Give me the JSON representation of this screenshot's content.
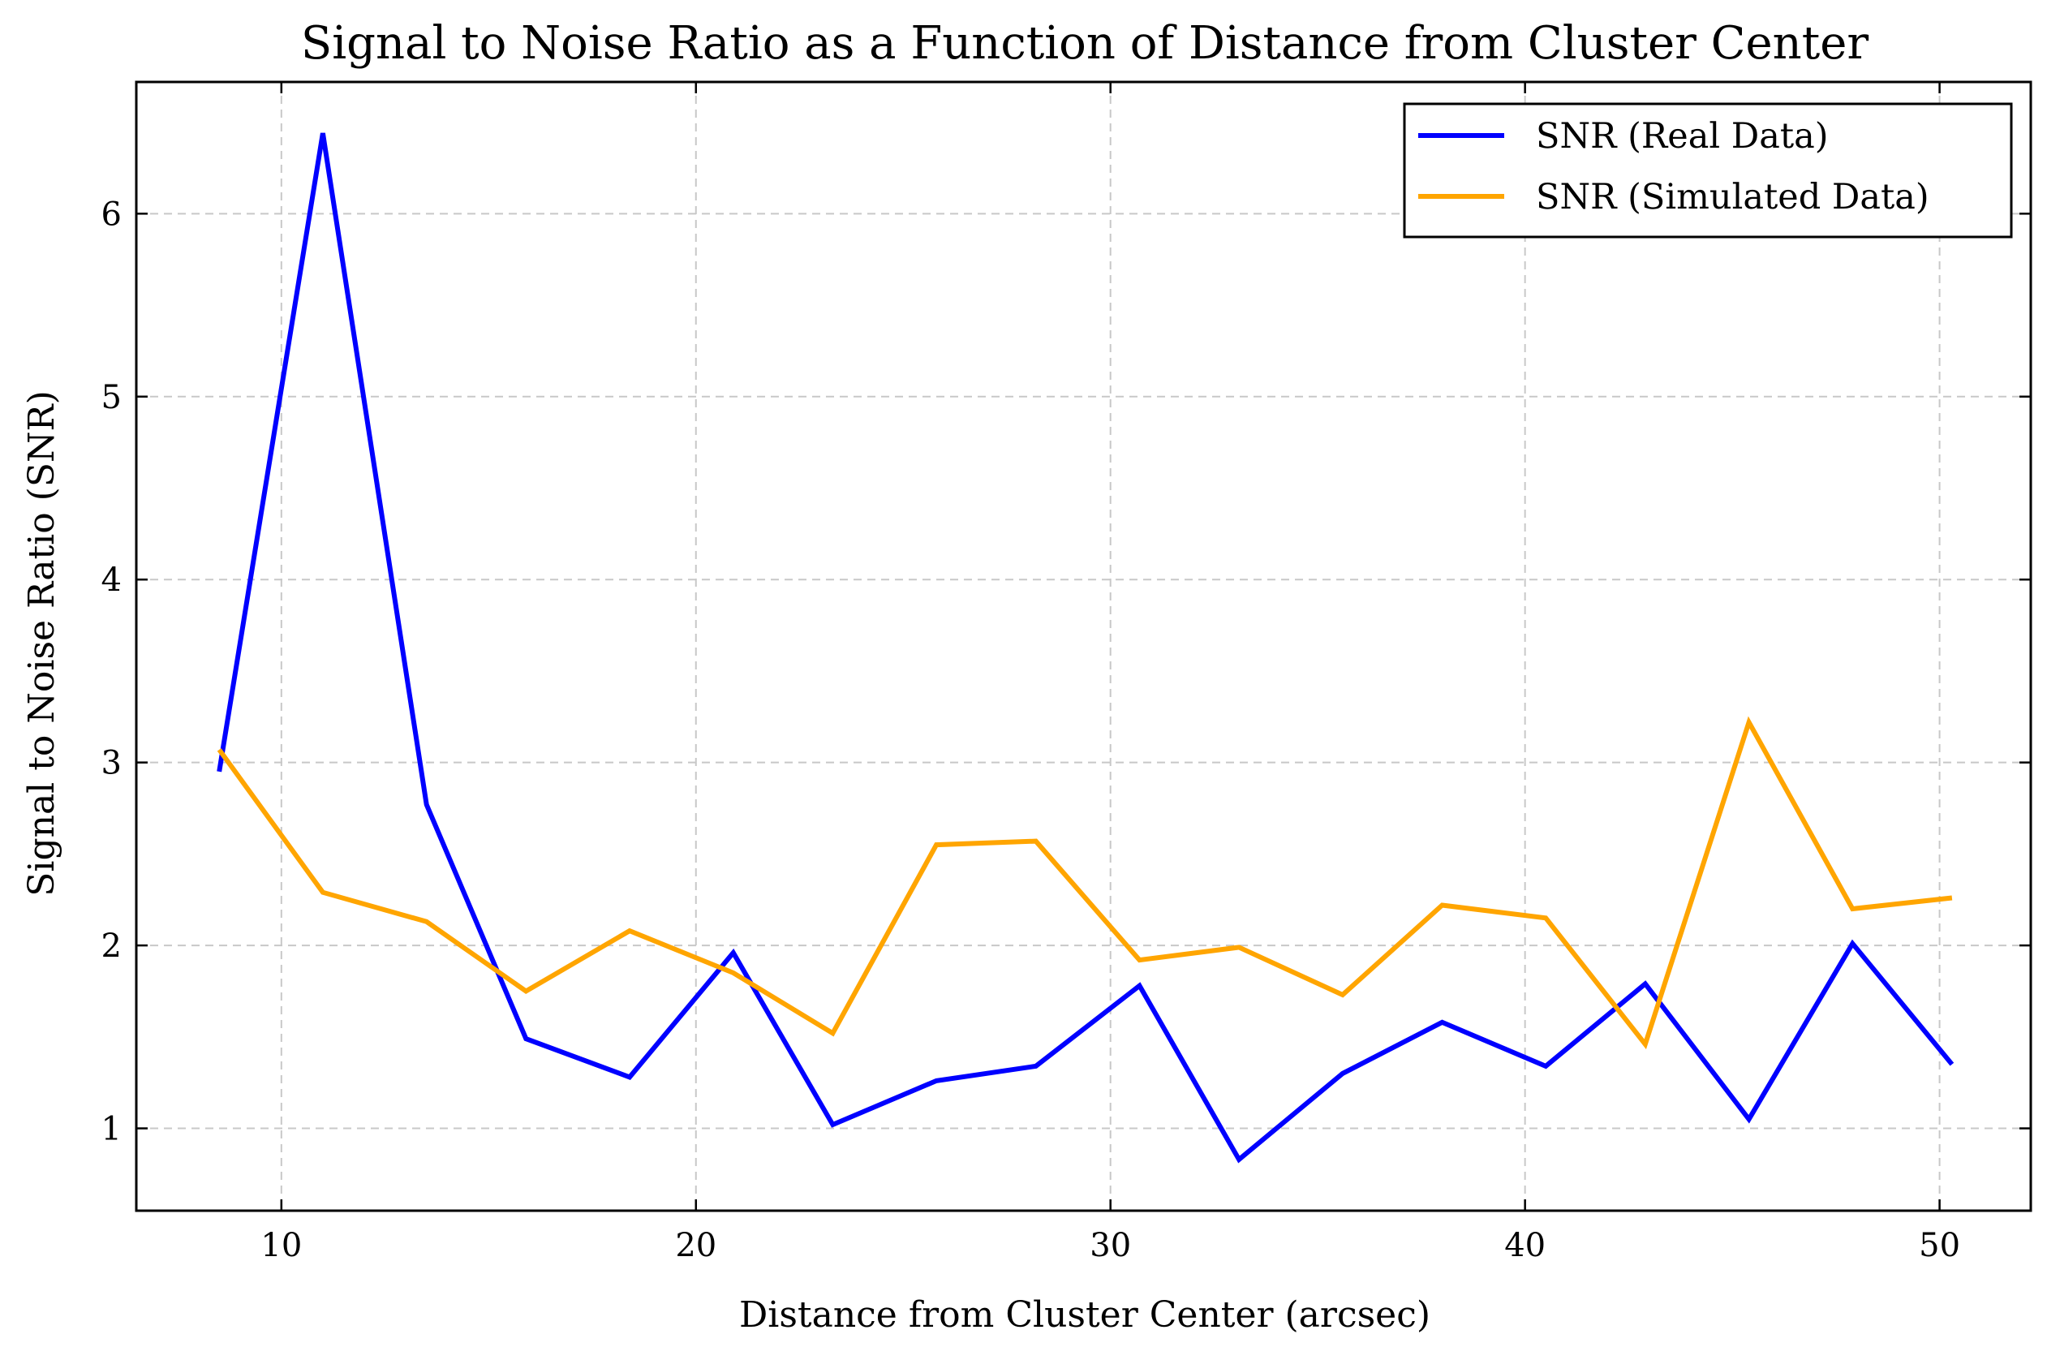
{
  "chart_data": {
    "type": "line",
    "title": "Signal to Noise Ratio as a Function of Distance from Cluster Center",
    "xlabel": "Distance from Cluster Center (arcsec)",
    "ylabel": "Signal to Noise Ratio (SNR)",
    "xlim": [
      6.5,
      52.2
    ],
    "ylim": [
      0.55,
      6.72
    ],
    "xticks": [
      10,
      20,
      30,
      40,
      50
    ],
    "yticks": [
      1,
      2,
      3,
      4,
      5,
      6
    ],
    "grid": true,
    "legend_position": "top-right",
    "x": [
      8.5,
      11.0,
      13.5,
      15.9,
      18.4,
      20.9,
      23.3,
      25.8,
      28.2,
      30.7,
      33.1,
      35.6,
      38.0,
      40.5,
      42.9,
      45.4,
      47.9,
      50.3
    ],
    "series": [
      {
        "name": "SNR (Real Data)",
        "color": "#0000ff",
        "values": [
          2.95,
          6.44,
          2.77,
          1.49,
          1.28,
          1.96,
          1.02,
          1.26,
          1.34,
          1.78,
          0.83,
          1.3,
          1.58,
          1.34,
          1.79,
          1.05,
          2.01,
          1.35
        ]
      },
      {
        "name": "SNR (Simulated Data)",
        "color": "#ffa500",
        "values": [
          3.07,
          2.29,
          2.13,
          1.75,
          2.08,
          1.85,
          1.52,
          2.55,
          2.57,
          1.92,
          1.99,
          1.73,
          2.22,
          2.15,
          1.46,
          3.22,
          2.2,
          2.26
        ]
      }
    ]
  }
}
